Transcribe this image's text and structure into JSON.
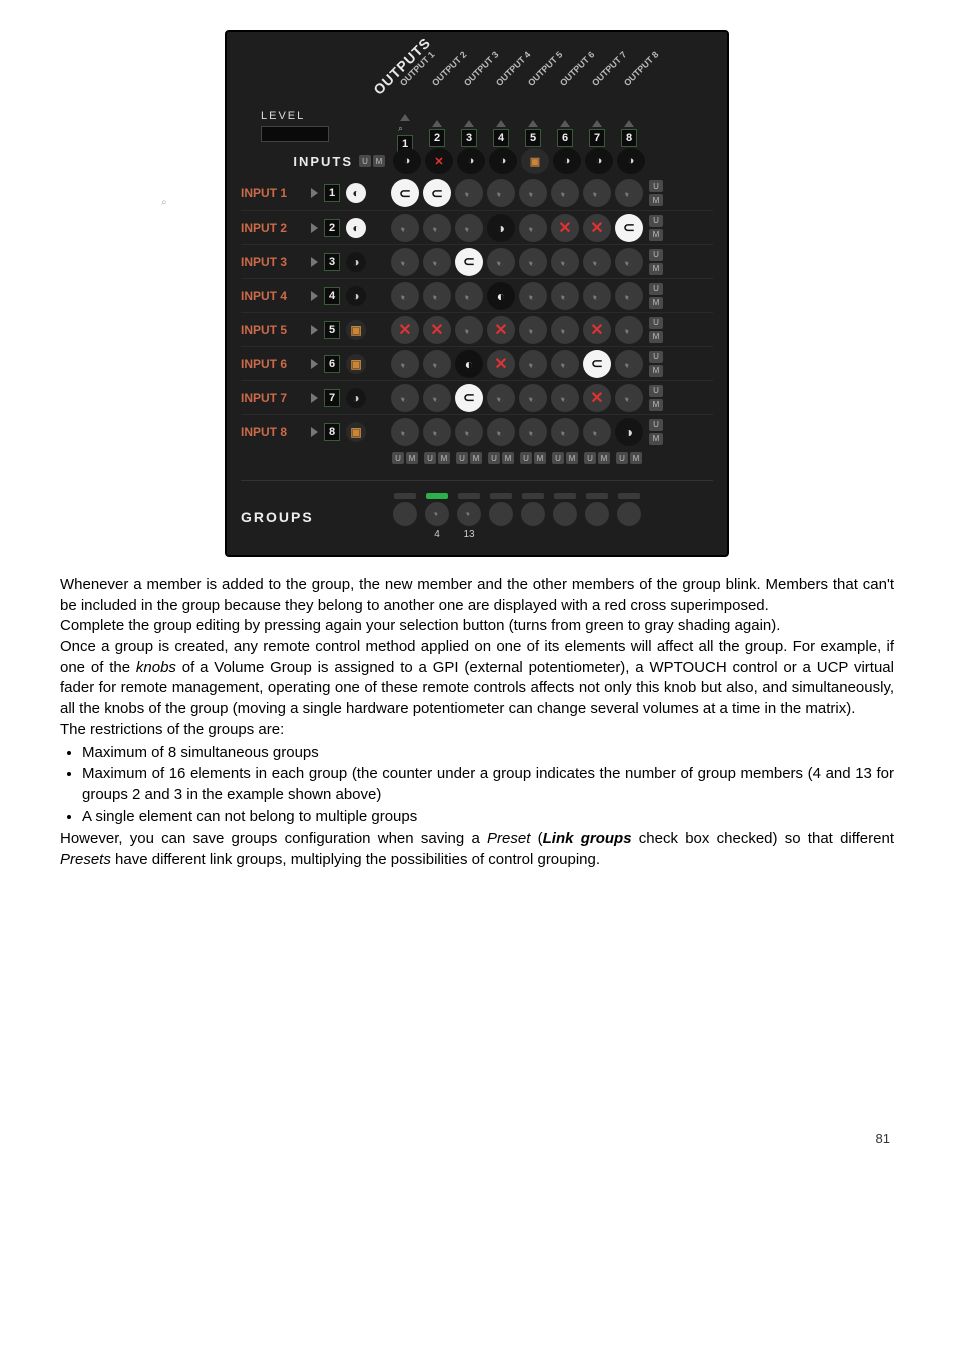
{
  "matrix": {
    "outputs_title": "OUTPUTS",
    "level_label": "LEVEL",
    "inputs_label": "INPUTS",
    "u_badge": "U",
    "m_badge": "M",
    "output_labels": [
      "OUTPUT 1",
      "OUTPUT 2",
      "OUTPUT 3",
      "OUTPUT 4",
      "OUTPUT 5",
      "OUTPUT 6",
      "OUTPUT 7",
      "OUTPUT 8"
    ],
    "output_numbers": [
      "1",
      "2",
      "3",
      "4",
      "5",
      "6",
      "7",
      "8"
    ],
    "header_cells": [
      "dark",
      "redfill",
      "dark",
      "dark",
      "redx",
      "dark",
      "dark",
      "dark"
    ],
    "inputs": [
      {
        "label": "INPUT 1",
        "num": "1",
        "status": "white",
        "link": "stereo",
        "cells": [
          "white",
          "white",
          "blank",
          "blank",
          "blank",
          "blank",
          "blank",
          "blank"
        ]
      },
      {
        "label": "INPUT 2",
        "num": "2",
        "status": "white",
        "cells": [
          "blank",
          "blank",
          "blank",
          "dark",
          "blank",
          "redx",
          "redx",
          "white"
        ]
      },
      {
        "label": "INPUT 3",
        "num": "3",
        "status": "dark",
        "cells": [
          "blank",
          "blank",
          "white",
          "blank",
          "blank",
          "blank",
          "blank",
          "blank"
        ]
      },
      {
        "label": "INPUT 4",
        "num": "4",
        "status": "dark",
        "cells": [
          "blank",
          "blank",
          "blank",
          "black",
          "blank",
          "blank",
          "blank",
          "blank"
        ]
      },
      {
        "label": "INPUT 5",
        "num": "5",
        "status": "redx",
        "cells": [
          "redx",
          "redx",
          "blank",
          "redx",
          "blank",
          "blank",
          "redx",
          "blank"
        ]
      },
      {
        "label": "INPUT 6",
        "num": "6",
        "status": "redx",
        "cells": [
          "blank",
          "blank",
          "black",
          "redx",
          "blank",
          "blank",
          "white",
          "blank"
        ]
      },
      {
        "label": "INPUT 7",
        "num": "7",
        "status": "dark",
        "cells": [
          "blank",
          "blank",
          "white",
          "blank",
          "blank",
          "blank",
          "redx",
          "blank"
        ]
      },
      {
        "label": "INPUT 8",
        "num": "8",
        "status": "redx",
        "cells": [
          "blank",
          "blank",
          "blank",
          "blank",
          "blank",
          "blank",
          "blank",
          "dark"
        ]
      }
    ],
    "groups_label": "GROUPS",
    "groups": [
      {
        "active": false,
        "count": ""
      },
      {
        "active": true,
        "count": "4",
        "dim": true
      },
      {
        "active": false,
        "count": "13",
        "dim": true
      },
      {
        "active": false,
        "count": ""
      },
      {
        "active": false,
        "count": ""
      },
      {
        "active": false,
        "count": ""
      },
      {
        "active": false,
        "count": ""
      },
      {
        "active": false,
        "count": ""
      }
    ]
  },
  "text": {
    "p1": "Whenever a member is added to the group, the new member and the other members of the group blink. Members that can't be included in the group because they belong to another one are displayed with a red cross superimposed.",
    "p2": "Complete the group editing by pressing again your selection button (turns from green to gray shading again).",
    "p3a": "Once a group is created, any remote control method applied on one of its elements will affect all the group. For example, if one of the ",
    "p3_knobs": "knobs",
    "p3b": " of a Volume Group is assigned to a GPI (external potentiometer), a WPTOUCH control or a UCP virtual fader for remote management, operating one of these remote controls affects not only this knob but also, and simultaneously, all the knobs of the group (moving a single hardware potentiometer can change several volumes at a time in the matrix).",
    "restrictions_intro": "The restrictions of the groups are:",
    "b1": "Maximum of 8 simultaneous groups",
    "b2": "Maximum of 16 elements in each group (the counter under a group indicates the number of group members (4 and 13 for groups 2 and 3 in the example shown above)",
    "b3": "A single element can not belong to multiple groups",
    "p4a": "However, you can save groups configuration when saving a ",
    "p4_preset1": "Preset",
    "p4b": " (",
    "p4_linkgroups": "Link groups",
    "p4c": " check box checked) so that different ",
    "p4_presets2": "Presets",
    "p4d": " have different link groups, multiplying the possibilities of control grouping.",
    "page_number": "81"
  },
  "colors": {
    "panel_bg": "#1e1e1e",
    "input_label": "#cc6a4a",
    "green": "#2fae4e",
    "red": "#d33333"
  }
}
